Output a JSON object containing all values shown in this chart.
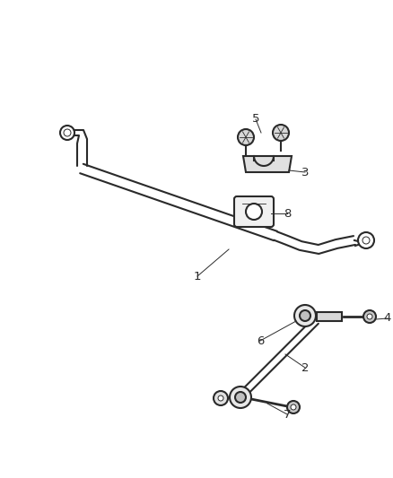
{
  "bg_color": "#ffffff",
  "line_color": "#2a2a2a",
  "label_color": "#2a2a2a",
  "figsize": [
    4.38,
    5.33
  ],
  "dpi": 100,
  "bar_lw": 1.5,
  "thin_lw": 1.0
}
